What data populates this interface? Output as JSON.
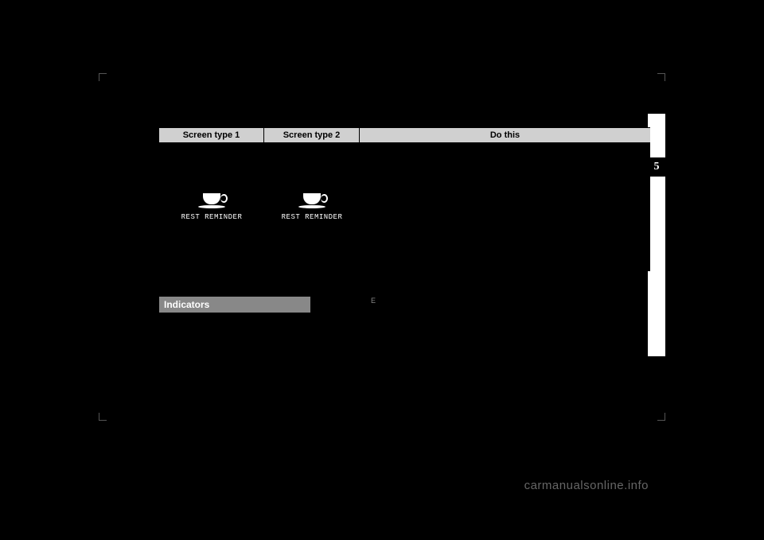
{
  "table": {
    "headers": {
      "col1": "Screen type 1",
      "col2": "Screen type 2",
      "col3": "Do this"
    },
    "row": {
      "label1": "REST REMINDER",
      "label2": "REST REMINDER"
    }
  },
  "indicators": {
    "title": "Indicators",
    "marker": "E"
  },
  "side": {
    "chapter": "5"
  },
  "watermark": "carmanualsonline.info",
  "colors": {
    "page_bg": "#000000",
    "table_bg": "#ffffff",
    "header_bg": "#d0d0d0",
    "tbody_bg": "#000000",
    "icon_color": "#ffffff",
    "indicators_bg": "#888888",
    "side_tab_bg": "#ffffff",
    "side_num_bg": "#000000",
    "watermark_color": "#666666"
  }
}
